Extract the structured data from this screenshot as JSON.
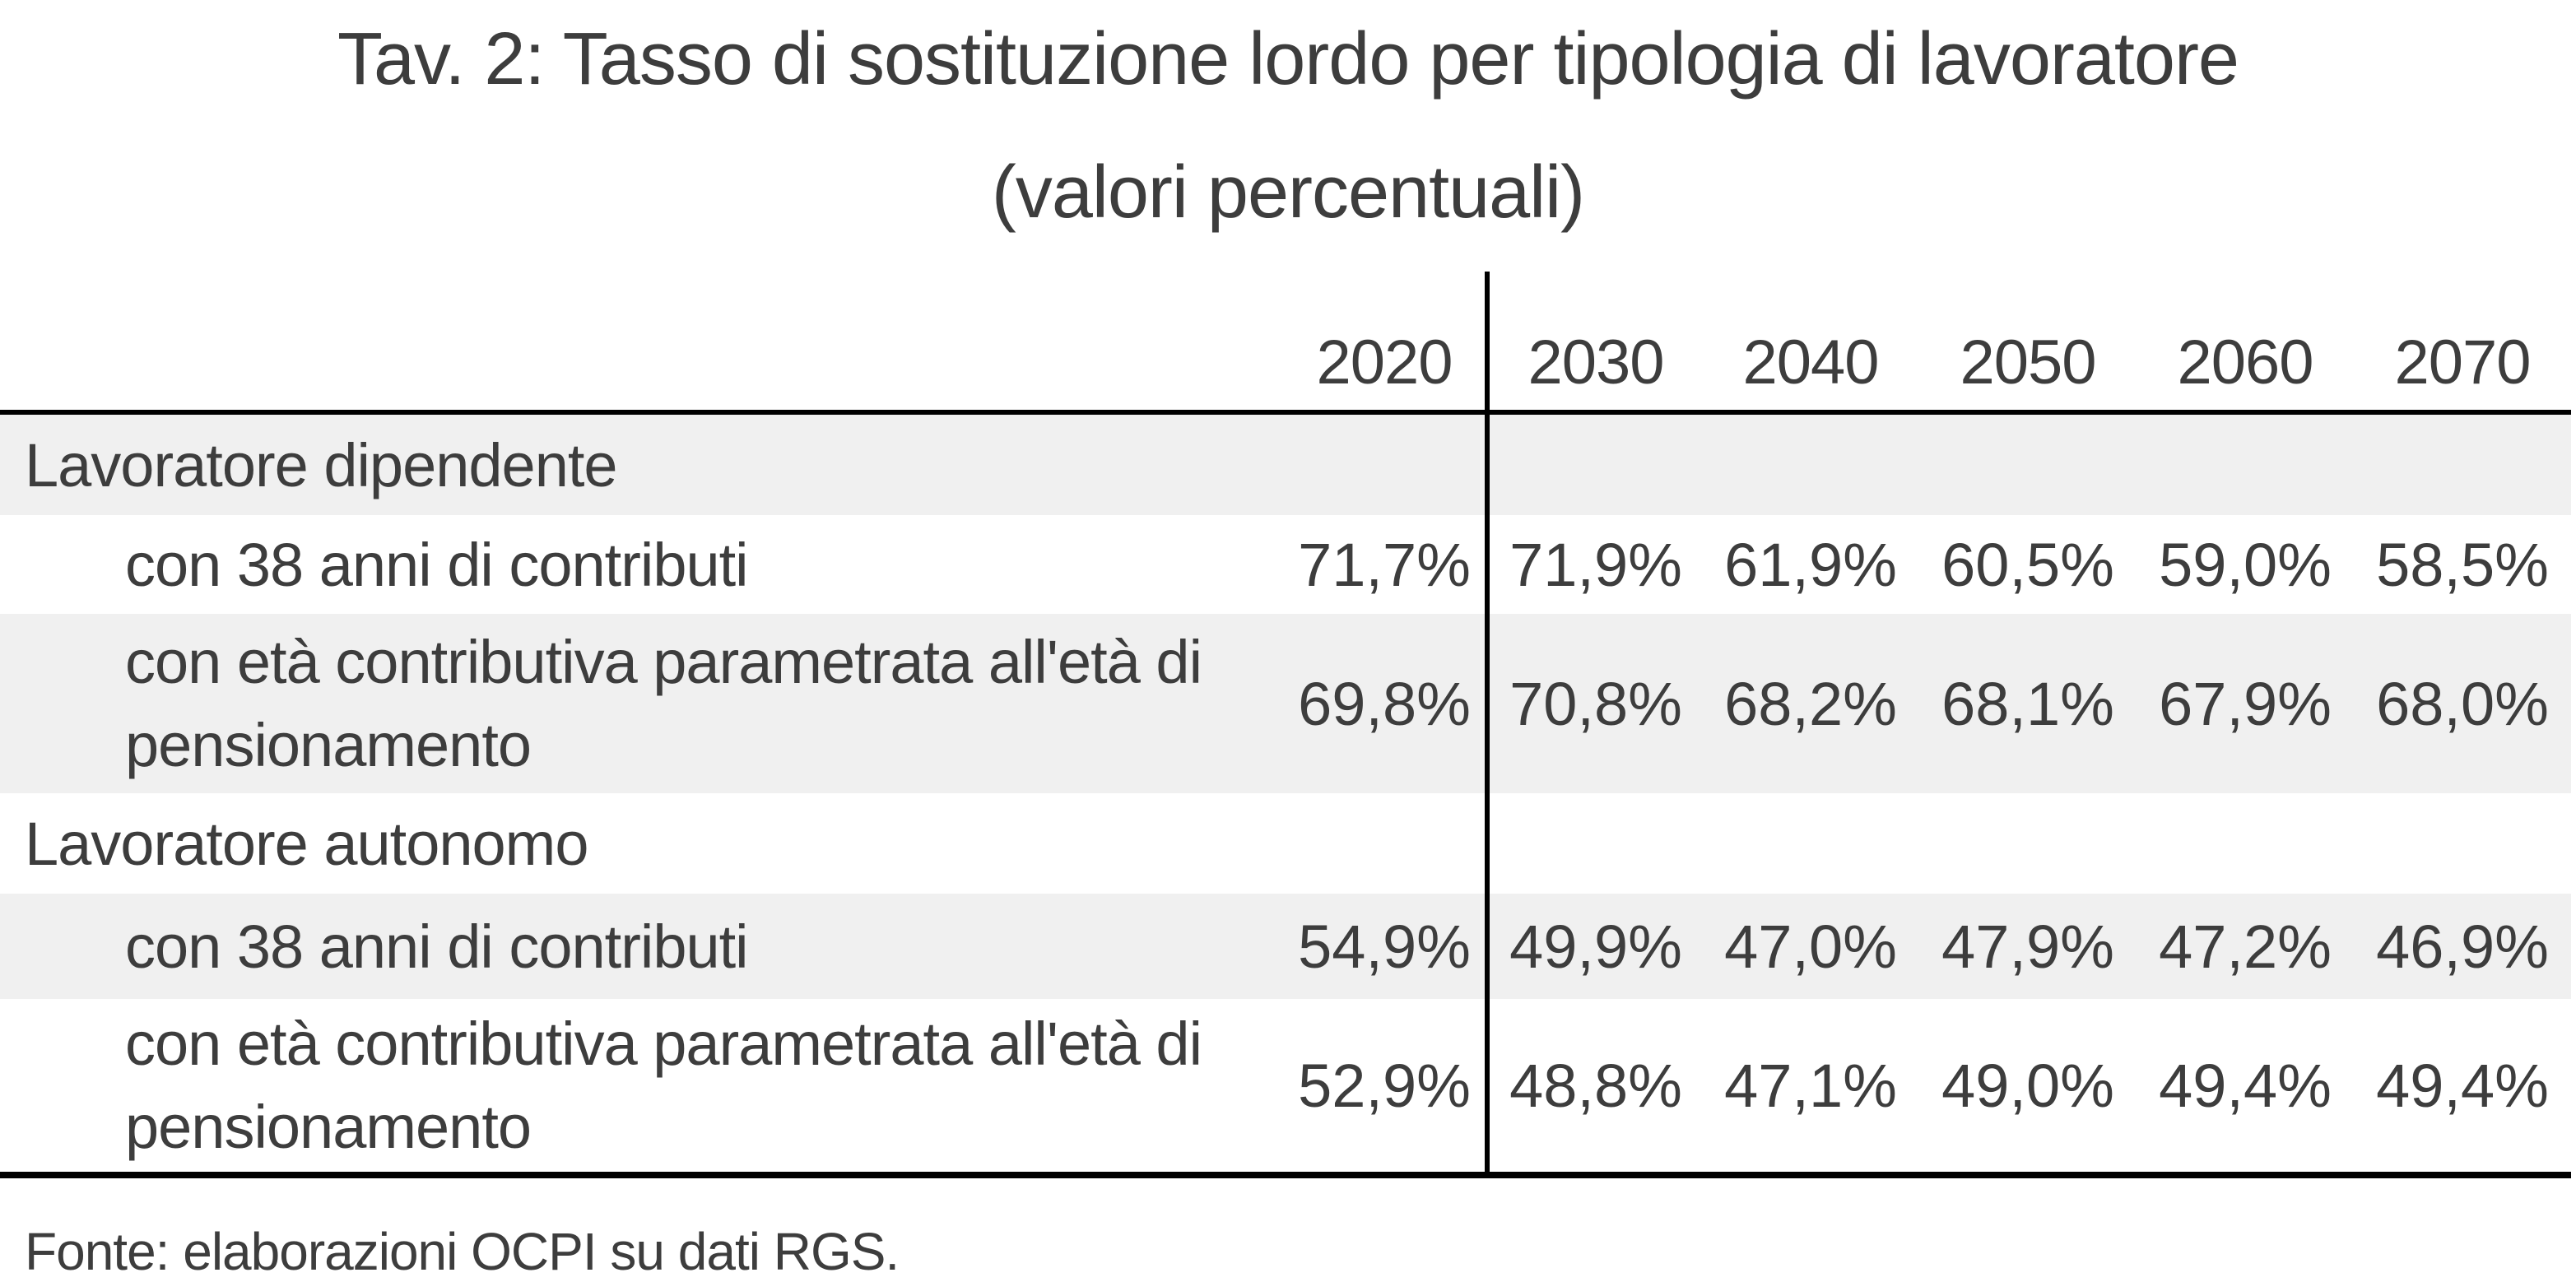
{
  "title": {
    "line1": "Tav. 2: Tasso di sostituzione lordo per tipologia di lavoratore",
    "line2": "(valori percentuali)"
  },
  "table": {
    "years": [
      "2020",
      "2030",
      "2040",
      "2050",
      "2060",
      "2070"
    ],
    "rows": [
      {
        "label": "Lavoratore dipendente",
        "type": "section",
        "values": [
          "",
          "",
          "",
          "",
          "",
          ""
        ]
      },
      {
        "label": "con 38 anni di contributi",
        "type": "sub",
        "values": [
          "71,7%",
          "71,9%",
          "61,9%",
          "60,5%",
          "59,0%",
          "58,5%"
        ]
      },
      {
        "label": "con età contributiva parametrata all'età di pensionamento",
        "type": "sub",
        "values": [
          "69,8%",
          "70,8%",
          "68,2%",
          "68,1%",
          "67,9%",
          "68,0%"
        ]
      },
      {
        "label": "Lavoratore autonomo",
        "type": "section",
        "values": [
          "",
          "",
          "",
          "",
          "",
          ""
        ]
      },
      {
        "label": "con 38 anni di contributi",
        "type": "sub",
        "values": [
          "54,9%",
          "49,9%",
          "47,0%",
          "47,9%",
          "47,2%",
          "46,9%"
        ]
      },
      {
        "label": "con età contributiva parametrata all'età di pensionamento",
        "type": "sub",
        "values": [
          "52,9%",
          "48,8%",
          "47,1%",
          "49,0%",
          "49,4%",
          "49,4%"
        ]
      }
    ]
  },
  "footer": {
    "source": "Fonte: elaborazioni OCPI su dati RGS."
  },
  "colors": {
    "text": "#3d3d3d",
    "band": "#f0f0f0",
    "line": "#000000"
  },
  "chart_data": {
    "type": "table",
    "title": "Tav. 2: Tasso di sostituzione lordo per tipologia di lavoratore",
    "subtitle": "(valori percentuali)",
    "unit": "%",
    "columns": [
      "2020",
      "2030",
      "2040",
      "2050",
      "2060",
      "2070"
    ],
    "rows": [
      {
        "label": "Lavoratore dipendente",
        "section": true,
        "values": []
      },
      {
        "label": "con 38 anni di contributi",
        "group": "Lavoratore dipendente",
        "values": [
          71.7,
          71.9,
          61.9,
          60.5,
          59.0,
          58.5
        ]
      },
      {
        "label": "con età contributiva parametrata all'età di pensionamento",
        "group": "Lavoratore dipendente",
        "values": [
          69.8,
          70.8,
          68.2,
          68.1,
          67.9,
          68.0
        ]
      },
      {
        "label": "Lavoratore autonomo",
        "section": true,
        "values": []
      },
      {
        "label": "con 38 anni di contributi",
        "group": "Lavoratore autonomo",
        "values": [
          54.9,
          49.9,
          47.0,
          47.9,
          47.2,
          46.9
        ]
      },
      {
        "label": "con età contributiva parametrata all'età di pensionamento",
        "group": "Lavoratore autonomo",
        "values": [
          52.9,
          48.8,
          47.1,
          49.0,
          49.4,
          49.4
        ]
      }
    ],
    "source": "Fonte: elaborazioni OCPI su dati RGS.",
    "layout": {
      "first_column_separated_by_vertical_rule": true,
      "banded_rows": true
    }
  }
}
